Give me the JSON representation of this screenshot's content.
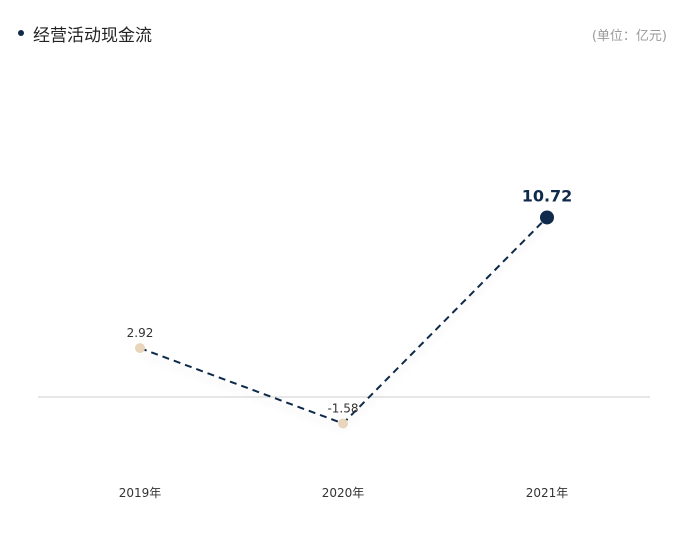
{
  "header": {
    "title": "经营活动现金流",
    "unit": "(单位：亿元)"
  },
  "colors": {
    "line": "#0f2a4a",
    "point": "#e8d5bb",
    "highlight_point": "#0f2a4a",
    "zero_line": "#cfcfcf"
  },
  "chart_data": {
    "type": "line",
    "title": "经营活动现金流",
    "unit": "(单位：亿元)",
    "categories": [
      "2019年",
      "2020年",
      "2021年"
    ],
    "values": [
      2.92,
      -1.58,
      10.72
    ],
    "value_labels": [
      "2.92",
      "-1.58",
      "10.72"
    ],
    "line_style": "dashed",
    "highlight_index": 2,
    "grid": false,
    "zero_baseline": true
  }
}
